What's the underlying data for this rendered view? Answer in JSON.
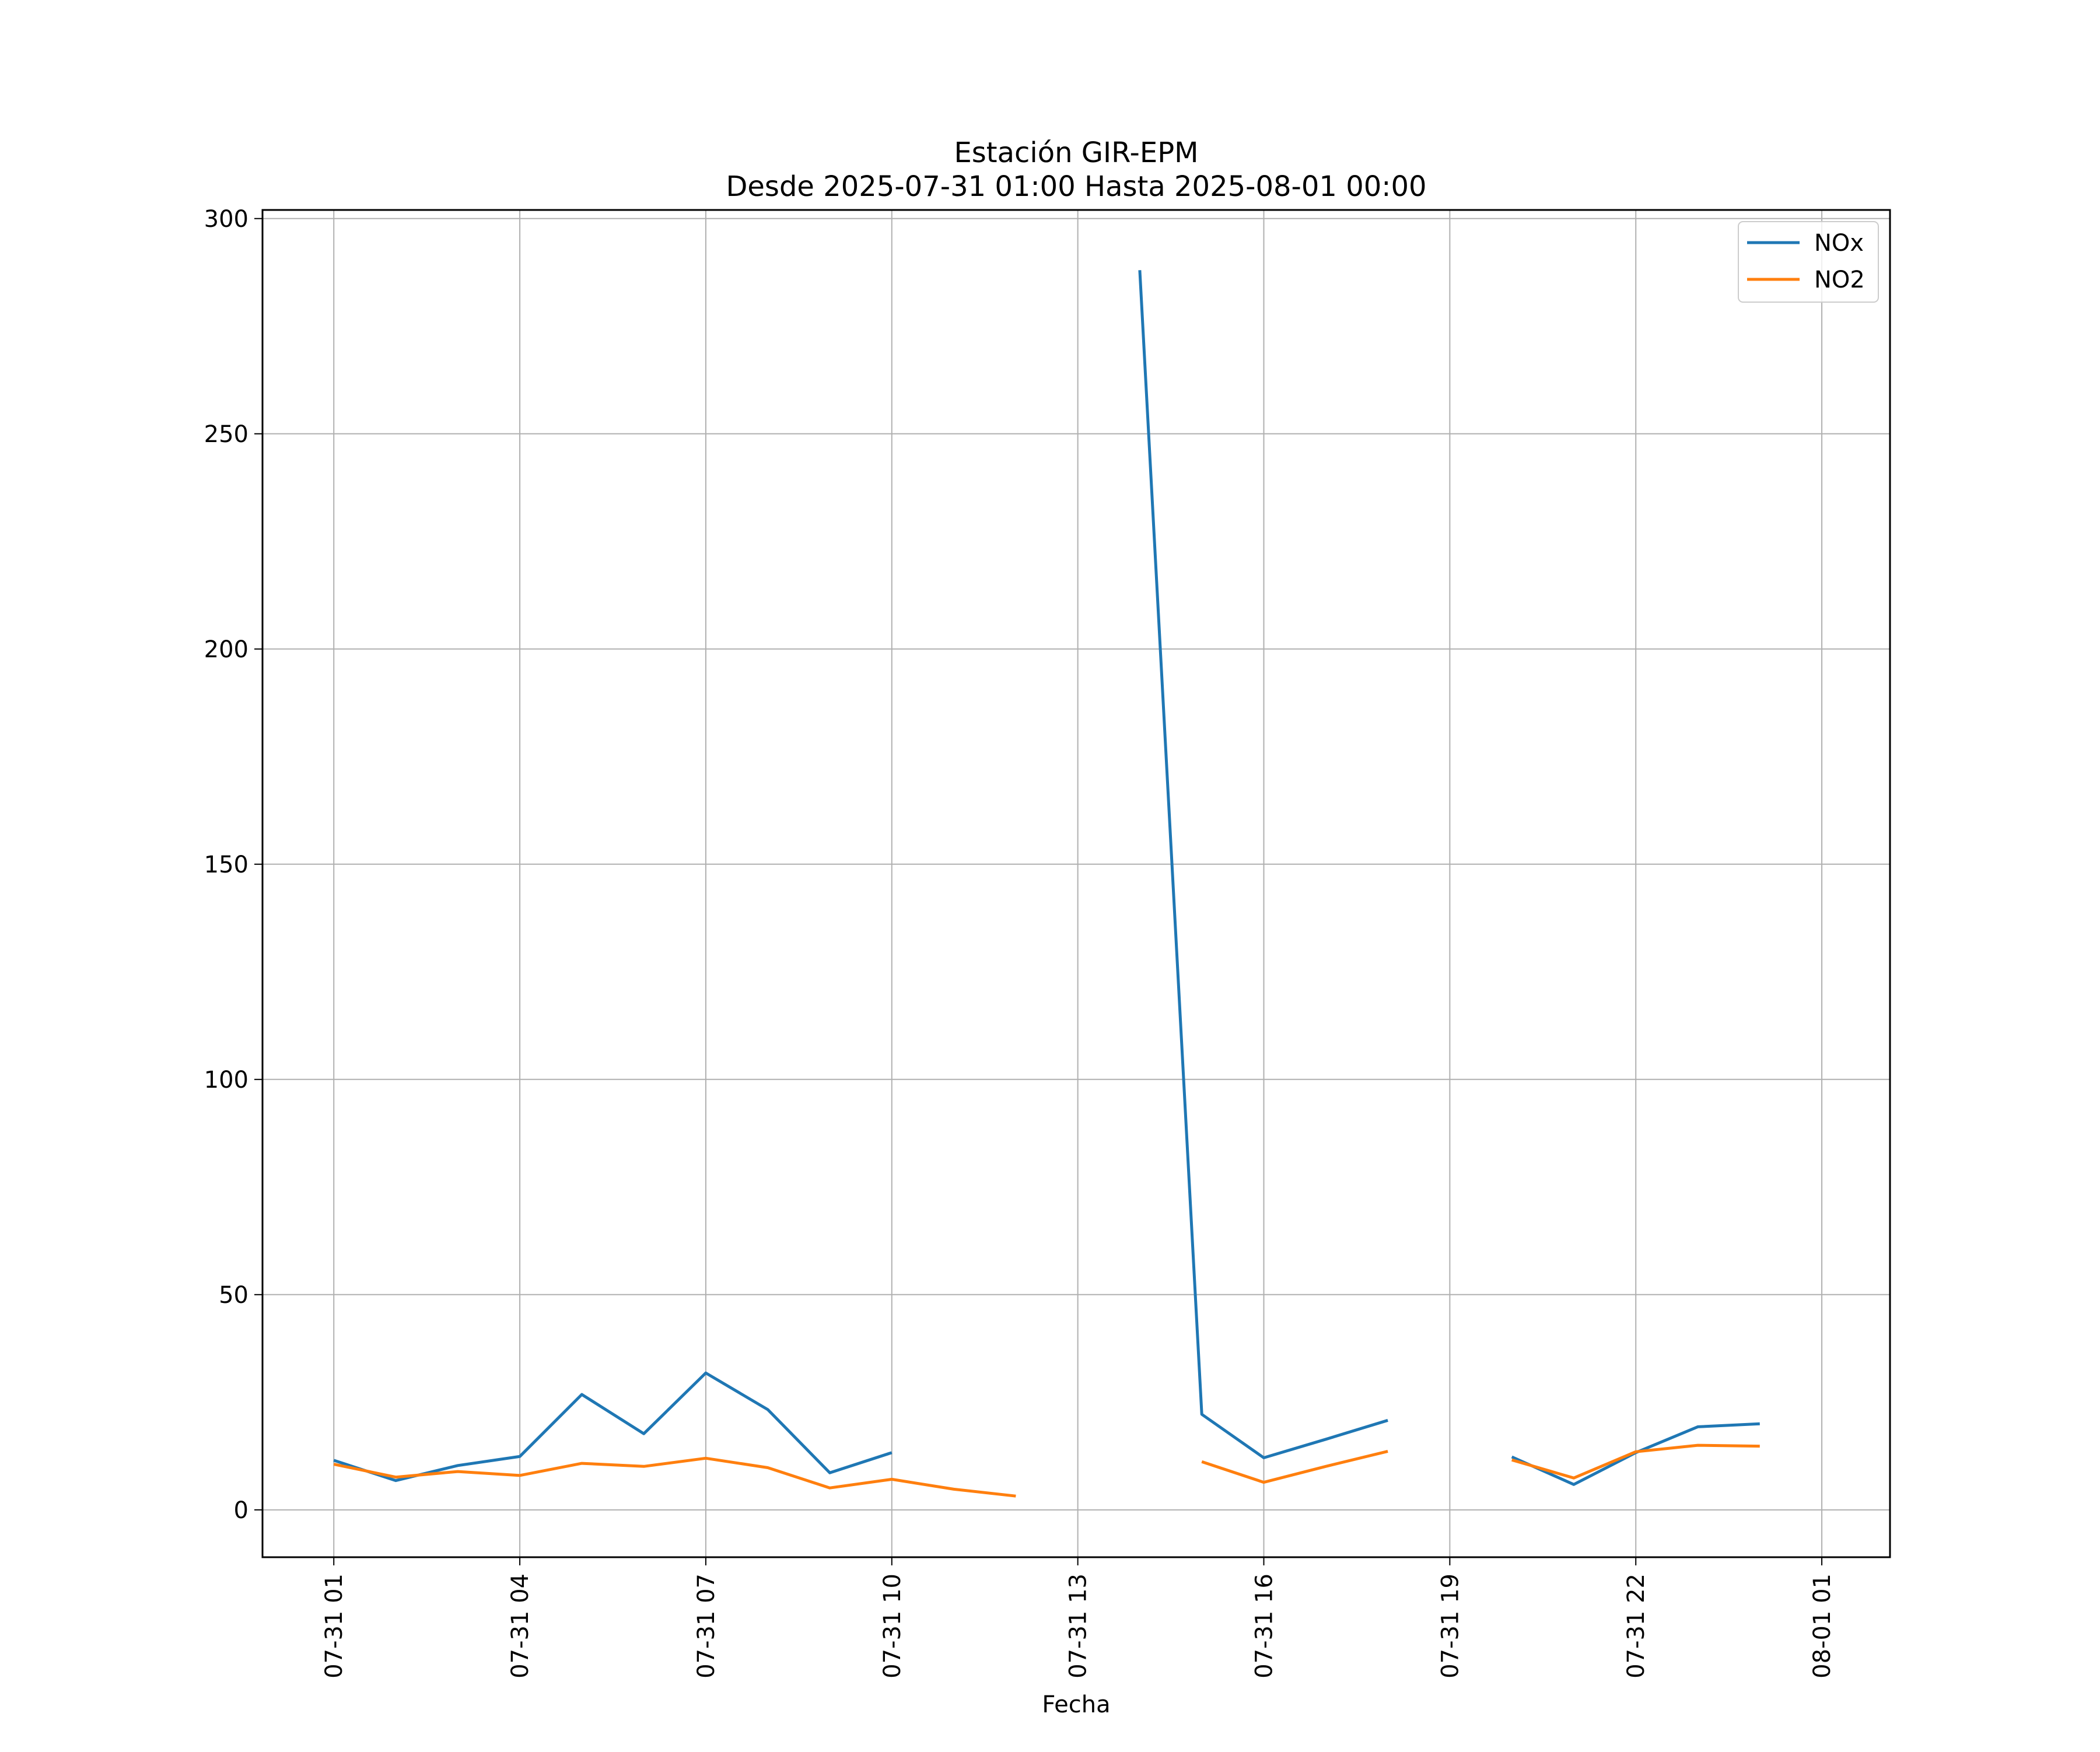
{
  "chart_data": {
    "type": "line",
    "title": "Estación GIR-EPM",
    "subtitle": "Desde 2025-07-31 01:00 Hasta 2025-08-01 00:00",
    "xlabel": "Fecha",
    "ylabel": "",
    "x_ticks": [
      "07-31 01",
      "07-31 04",
      "07-31 07",
      "07-31 10",
      "07-31 13",
      "07-31 16",
      "07-31 19",
      "07-31 22",
      "08-01 01"
    ],
    "x_tick_hours": [
      1,
      4,
      7,
      10,
      13,
      16,
      19,
      22,
      25
    ],
    "y_ticks": [
      0,
      50,
      100,
      150,
      200,
      250,
      300
    ],
    "ylim": [
      -11,
      302
    ],
    "xlim_hours": [
      -0.15,
      26.1
    ],
    "grid": true,
    "legend_position": "upper right",
    "x": [
      "07-31 01",
      "07-31 02",
      "07-31 03",
      "07-31 04",
      "07-31 05",
      "07-31 06",
      "07-31 07",
      "07-31 08",
      "07-31 09",
      "07-31 10",
      "07-31 11",
      "07-31 12",
      "07-31 13",
      "07-31 14",
      "07-31 15",
      "07-31 16",
      "07-31 17",
      "07-31 18",
      "07-31 19",
      "07-31 20",
      "07-31 21",
      "07-31 22",
      "07-31 23",
      "08-01 00"
    ],
    "x_hours": [
      1,
      2,
      3,
      4,
      5,
      6,
      7,
      8,
      9,
      10,
      11,
      12,
      13,
      14,
      15,
      16,
      17,
      18,
      19,
      20,
      21,
      22,
      23,
      24
    ],
    "series": [
      {
        "name": "NOx",
        "color": "#1f77b4",
        "values": [
          11.5,
          6.8,
          10.3,
          12.4,
          26.8,
          17.7,
          31.8,
          23.3,
          8.6,
          13.3,
          null,
          null,
          null,
          288,
          22.2,
          12.1,
          16.4,
          20.8,
          null,
          12.3,
          5.9,
          13.3,
          19.3,
          20.0
        ]
      },
      {
        "name": "NO2",
        "color": "#ff7f0e",
        "values": [
          10.6,
          7.6,
          8.9,
          8.0,
          10.8,
          10.1,
          12.0,
          9.8,
          5.1,
          7.1,
          4.8,
          3.2,
          null,
          null,
          11.2,
          6.4,
          10.1,
          13.6,
          null,
          11.6,
          7.4,
          13.5,
          15.0,
          14.8
        ]
      }
    ]
  }
}
